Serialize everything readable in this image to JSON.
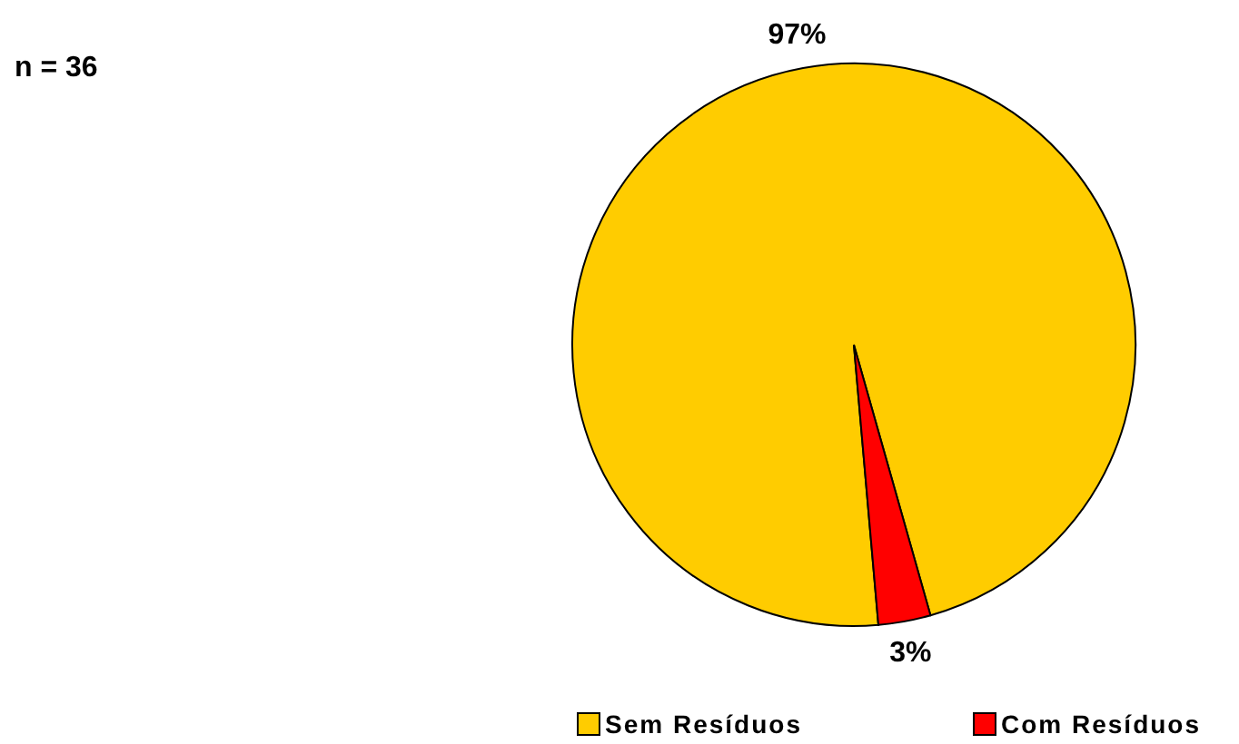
{
  "chart_data": {
    "type": "pie",
    "categories": [
      "Sem Resíduos",
      "Com Resíduos"
    ],
    "values": [
      97,
      3
    ],
    "colors": [
      "#ffcc00",
      "#ff0000"
    ],
    "value_labels": [
      "97%",
      "3%"
    ],
    "legend": "bottom",
    "annotations": [
      "n = 36"
    ]
  }
}
